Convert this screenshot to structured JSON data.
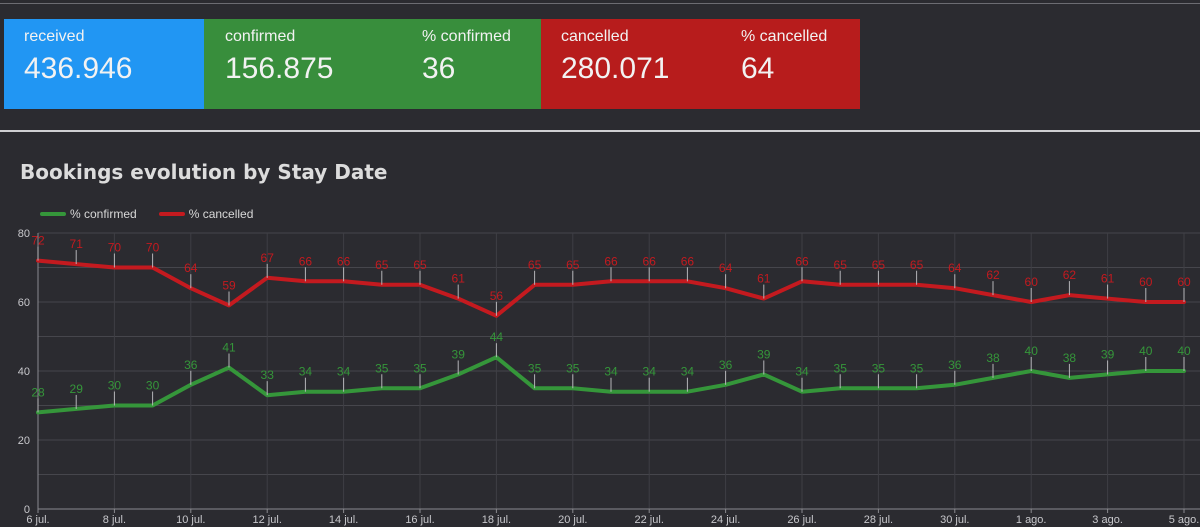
{
  "scorecards": {
    "received": {
      "label": "received",
      "value": "436.946"
    },
    "confirmed": {
      "label": "confirmed",
      "value": "156.875"
    },
    "pct_confirmed": {
      "label": "% confirmed",
      "value": "36"
    },
    "cancelled": {
      "label": "cancelled",
      "value": "280.071"
    },
    "pct_cancelled": {
      "label": "% cancelled",
      "value": "64"
    }
  },
  "colors": {
    "received": "#2196f3",
    "confirmed": "#388e3c",
    "cancelled": "#b71c1c",
    "series_confirmed": "#35963a",
    "series_cancelled": "#c41a1f"
  },
  "chart_data": {
    "type": "line",
    "title": "Bookings evolution by Stay Date",
    "xlabel": "",
    "ylabel": "",
    "ylim": [
      0,
      80
    ],
    "y_ticks": [
      0,
      20,
      40,
      60,
      80
    ],
    "grid": true,
    "legend_position": "top-left",
    "x": [
      "6 jul.",
      "7 jul.",
      "8 jul.",
      "9 jul.",
      "10 jul.",
      "11 jul.",
      "12 jul.",
      "13 jul.",
      "14 jul.",
      "15 jul.",
      "16 jul.",
      "17 jul.",
      "18 jul.",
      "19 jul.",
      "20 jul.",
      "21 jul.",
      "22 jul.",
      "23 jul.",
      "24 jul.",
      "25 jul.",
      "26 jul.",
      "27 jul.",
      "28 jul.",
      "29 jul.",
      "30 jul.",
      "31 jul.",
      "1 ago.",
      "2 ago.",
      "3 ago.",
      "4 ago.",
      "5 ago."
    ],
    "x_tick_labels": [
      "6 jul.",
      "8 jul.",
      "10 jul.",
      "12 jul.",
      "14 jul.",
      "16 jul.",
      "18 jul.",
      "20 jul.",
      "22 jul.",
      "24 jul.",
      "26 jul.",
      "28 jul.",
      "30 jul.",
      "1 ago.",
      "3 ago.",
      "5 ago."
    ],
    "series": [
      {
        "name": "% confirmed",
        "values": [
          28,
          29,
          30,
          30,
          36,
          41,
          33,
          34,
          34,
          35,
          35,
          39,
          44,
          35,
          35,
          34,
          34,
          34,
          36,
          39,
          34,
          35,
          35,
          35,
          36,
          38,
          40,
          38,
          39,
          40,
          40
        ]
      },
      {
        "name": "% cancelled",
        "values": [
          72,
          71,
          70,
          70,
          64,
          59,
          67,
          66,
          66,
          65,
          65,
          61,
          56,
          65,
          65,
          66,
          66,
          66,
          64,
          61,
          66,
          65,
          65,
          65,
          64,
          62,
          60,
          62,
          61,
          60,
          60
        ]
      }
    ]
  }
}
